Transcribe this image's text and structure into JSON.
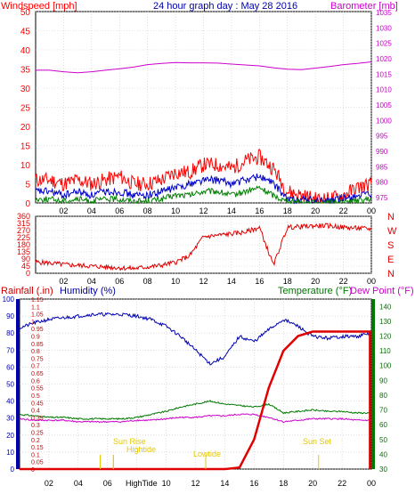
{
  "header": {
    "left_title": "Windspeed [mph]",
    "center_title": "24 hour graph day : May 28 2016",
    "right_title": "Barometer [mb]"
  },
  "labels": {
    "rainfall": "Rainfall (.in)",
    "humidity": "Humidity (%)",
    "temperature": "Temperature (°F)",
    "dew_point": "Dew Point (°F)",
    "sun_rise": "Sun Rise",
    "sun_set": "Sun Set",
    "hightide": "Hightide",
    "hightide2": "HighTide",
    "lowtide": "Lowtide"
  },
  "colors": {
    "wind_speed": "#ff0000",
    "wind_avg": "#0000c8",
    "wind_low": "#008000",
    "barometer": "#cc00cc",
    "direction": "#e00000",
    "humidity": "#0000b4",
    "temperature": "#007800",
    "dew_point": "#cc00cc",
    "rainfall": "#e00000",
    "rain_axis": "#cc0000",
    "humidity_axis": "#0000aa",
    "temp_axis": "#007700",
    "tide": "#e6c800",
    "grid": "#c8c8c8"
  },
  "chart_data": [
    {
      "type": "line",
      "title": "24 hour graph day : May 28 2016",
      "x_ticks": [
        "02",
        "04",
        "06",
        "08",
        "10",
        "12",
        "14",
        "16",
        "18",
        "20",
        "22",
        "00"
      ],
      "x": [
        0,
        1,
        2,
        3,
        4,
        5,
        6,
        7,
        8,
        9,
        10,
        11,
        12,
        13,
        14,
        15,
        16,
        17,
        18,
        19,
        20,
        21,
        22,
        23,
        24
      ],
      "y_left_ticks": [
        0,
        5,
        10,
        15,
        20,
        25,
        30,
        35,
        40,
        45,
        50
      ],
      "y_left_range": [
        0,
        50
      ],
      "y_right_ticks": [
        975,
        980,
        985,
        990,
        995,
        1000,
        1005,
        1010,
        1015,
        1020,
        1025,
        1030,
        1035
      ],
      "y_right_range": [
        973,
        1035
      ],
      "series": [
        {
          "axis": "left",
          "values": [
            6,
            6,
            5,
            6,
            5,
            6,
            7,
            5,
            5,
            6,
            8,
            8,
            10,
            10,
            9,
            11,
            12,
            9,
            3,
            2,
            1,
            1,
            2,
            4,
            5
          ]
        },
        {
          "axis": "left",
          "values": [
            3,
            3,
            2,
            3,
            2,
            3,
            3,
            2,
            2,
            3,
            4,
            5,
            6,
            6,
            5,
            6,
            7,
            5,
            1,
            1,
            0.5,
            0.5,
            1,
            2,
            2
          ]
        },
        {
          "axis": "left",
          "values": [
            1,
            1,
            0.5,
            1,
            0.5,
            1,
            1,
            0.5,
            0.5,
            1,
            2,
            2,
            3,
            3,
            2,
            3,
            4,
            2,
            0.3,
            0.2,
            0,
            0,
            0.3,
            0.5,
            1
          ]
        },
        {
          "axis": "right",
          "values": [
            1016,
            1016,
            1015.5,
            1015.2,
            1015.5,
            1016,
            1016.5,
            1017,
            1017.8,
            1018.2,
            1018.5,
            1018.4,
            1018.4,
            1018.3,
            1018,
            1017.7,
            1017.4,
            1016.8,
            1016.3,
            1016.2,
            1016.7,
            1017.2,
            1017.8,
            1018.2,
            1018.7
          ]
        }
      ]
    },
    {
      "type": "line",
      "x_ticks": [
        "02",
        "04",
        "06",
        "08",
        "10",
        "12",
        "14",
        "16",
        "18",
        "20",
        "22",
        "00"
      ],
      "x": [
        0,
        1,
        2,
        3,
        4,
        5,
        6,
        7,
        8,
        9,
        10,
        11,
        12,
        13,
        14,
        15,
        16,
        17,
        18,
        19,
        20,
        21,
        22,
        23,
        24
      ],
      "y_left_ticks": [
        0,
        45,
        90,
        135,
        180,
        225,
        270,
        315,
        360
      ],
      "y_left_range": [
        0,
        360
      ],
      "y_right_ticks": [
        "N",
        "W",
        "S",
        "E",
        "N"
      ],
      "series": [
        {
          "values": [
            70,
            65,
            55,
            50,
            45,
            40,
            35,
            30,
            40,
            50,
            70,
            110,
            230,
            240,
            250,
            260,
            290,
            50,
            290,
            295,
            300,
            300,
            290,
            285,
            280
          ]
        }
      ]
    },
    {
      "type": "line",
      "x_ticks": [
        "02",
        "04",
        "06",
        "08",
        "10",
        "12",
        "14",
        "16",
        "18",
        "20",
        "22",
        "00"
      ],
      "x": [
        0,
        1,
        2,
        3,
        4,
        5,
        6,
        7,
        8,
        9,
        10,
        11,
        12,
        13,
        14,
        15,
        16,
        17,
        18,
        19,
        20,
        21,
        22,
        23,
        24
      ],
      "y_rain_ticks": [
        0,
        0.05,
        0.1,
        0.15,
        0.2,
        0.25,
        0.3,
        0.35,
        0.4,
        0.45,
        0.5,
        0.55,
        0.6,
        0.65,
        0.7,
        0.75,
        0.8,
        0.85,
        0.9,
        0.95,
        1,
        1.05,
        1.1,
        1.15
      ],
      "y_rain_tick_labels": [
        "0",
        "0.05",
        "0.1",
        "0.15",
        "0.2",
        "0.25",
        "0.3",
        "0.35",
        "0.4",
        "0.45",
        "0.5",
        "0.55",
        "0.6",
        "0.65",
        "0.7",
        "0.75",
        "0.8",
        "0.85",
        "0.9",
        "0.95",
        "1",
        "1.05",
        "1.1",
        "1.15"
      ],
      "y_rain_range": [
        0,
        1.15
      ],
      "y_humidity_ticks": [
        0,
        10,
        20,
        30,
        40,
        50,
        60,
        70,
        80,
        90,
        100
      ],
      "y_humidity_range": [
        0,
        100
      ],
      "y_temp_ticks": [
        30,
        40,
        50,
        60,
        70,
        80,
        90,
        100,
        110,
        120,
        130,
        140
      ],
      "y_temp_range": [
        30,
        145
      ],
      "series": [
        {
          "axis": "humidity",
          "values": [
            83,
            86,
            88,
            89,
            90,
            91,
            91,
            91,
            90,
            88,
            84,
            78,
            70,
            62,
            66,
            78,
            75,
            82,
            88,
            84,
            78,
            77,
            78,
            78,
            80
          ]
        },
        {
          "axis": "temperature",
          "values": [
            67,
            66,
            65,
            65,
            64,
            64,
            64,
            64,
            65,
            67,
            69,
            72,
            74,
            76,
            74,
            73,
            72,
            74,
            68,
            69,
            70,
            69,
            69,
            68,
            68
          ]
        },
        {
          "axis": "temperature",
          "values": [
            64,
            63,
            63,
            63,
            62,
            62,
            62,
            62,
            63,
            63,
            64,
            65,
            65,
            66,
            66,
            67,
            67,
            65,
            62,
            63,
            64,
            64,
            64,
            63,
            63
          ]
        },
        {
          "axis": "rain",
          "values": [
            0,
            0,
            0,
            0,
            0,
            0,
            0,
            0,
            0,
            0,
            0,
            0,
            0,
            0,
            0,
            0.01,
            0.2,
            0.55,
            0.8,
            0.9,
            0.93,
            0.93,
            0.93,
            0.93,
            0
          ]
        }
      ],
      "events": [
        {
          "label": "Sun Rise",
          "x": 5.5
        },
        {
          "label": "Hightide",
          "x": 6.4
        },
        {
          "label": "HighTide",
          "x": 6.4
        },
        {
          "label": "Lowtide",
          "x": 12.7
        },
        {
          "label": "Sun Set",
          "x": 20.4
        }
      ]
    }
  ]
}
